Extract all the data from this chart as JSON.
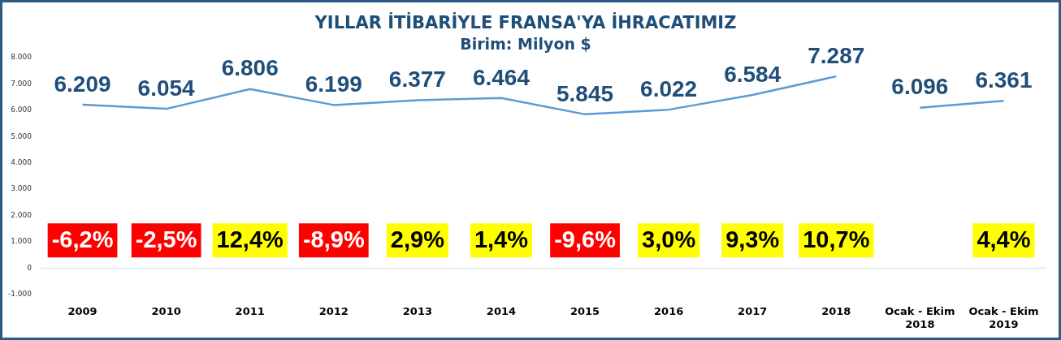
{
  "chart_data": {
    "type": "line",
    "title": "YILLAR İTİBARİYLE FRANSA'YA İHRACATIMIZ",
    "subtitle": "Birim: Milyon $",
    "categories": [
      "2009",
      "2010",
      "2011",
      "2012",
      "2013",
      "2014",
      "2015",
      "2016",
      "2017",
      "2018",
      "Ocak - Ekim 2018",
      "Ocak - Ekim 2019"
    ],
    "series": [
      {
        "color": "#5b9bd5",
        "values": [
          6209,
          6054,
          6806,
          6199,
          6377,
          6464,
          5845,
          6022,
          6584,
          7287,
          null,
          null
        ],
        "value_labels": [
          "6.209",
          "6.054",
          "6.806",
          "6.199",
          "6.377",
          "6.464",
          "5.845",
          "6.022",
          "6.584",
          "7.287",
          null,
          null
        ]
      },
      {
        "color": "#5b9bd5",
        "values": [
          null,
          null,
          null,
          null,
          null,
          null,
          null,
          null,
          null,
          null,
          6096,
          6361
        ],
        "value_labels": [
          null,
          null,
          null,
          null,
          null,
          null,
          null,
          null,
          null,
          null,
          "6.096",
          "6.361"
        ]
      }
    ],
    "ylim": [
      -1000,
      8000
    ],
    "yticks": [
      {
        "value": -1000,
        "label": "-1.000"
      },
      {
        "value": 0,
        "label": "0"
      },
      {
        "value": 1000,
        "label": "1.000"
      },
      {
        "value": 2000,
        "label": "2.000"
      },
      {
        "value": 3000,
        "label": "3.000"
      },
      {
        "value": 4000,
        "label": "4.000"
      },
      {
        "value": 5000,
        "label": "5.000"
      },
      {
        "value": 6000,
        "label": "6.000"
      },
      {
        "value": 7000,
        "label": "7.000"
      },
      {
        "value": 8000,
        "label": "8.000"
      }
    ],
    "marker": "none",
    "legend": false,
    "annotations": [
      "-6,2%",
      "-2,5%",
      "12,4%",
      "-8,9%",
      "2,9%",
      "1,4%",
      "-9,6%",
      "3,0%",
      "9,3%",
      "10,7%",
      "4,4%"
    ]
  }
}
